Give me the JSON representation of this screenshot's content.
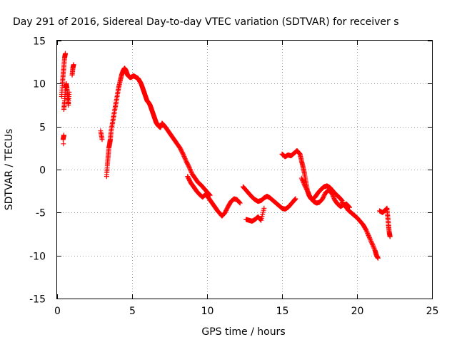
{
  "chart_data": {
    "type": "scatter",
    "title": "Day 291 of 2016, Sidereal Day-to-day VTEC variation (SDTVAR) for receiver s",
    "xlabel": "GPS time / hours",
    "ylabel": "SDTVAR / TECUs",
    "xlim": [
      0,
      25
    ],
    "ylim": [
      -15,
      15
    ],
    "x_ticks": [
      0,
      5,
      10,
      15,
      20,
      25
    ],
    "y_ticks": [
      -15,
      -10,
      -5,
      0,
      5,
      10,
      15
    ],
    "x_tick_labels": [
      "0",
      "5",
      "10",
      "15",
      "20",
      "25"
    ],
    "y_tick_labels": [
      "-15",
      "-10",
      "-5",
      "0",
      "5",
      "10",
      "15"
    ],
    "grid": true,
    "marker": "plus",
    "color": "#ff0000",
    "series": [
      {
        "values": [
          [
            0.3,
            8.5
          ],
          [
            0.35,
            10.0
          ],
          [
            0.4,
            11.0
          ],
          [
            0.45,
            12.0
          ],
          [
            0.5,
            13.0
          ],
          [
            0.55,
            13.5
          ],
          [
            0.45,
            7.0
          ],
          [
            0.5,
            8.0
          ],
          [
            0.55,
            9.5
          ],
          [
            0.6,
            10.0
          ],
          [
            0.65,
            9.5
          ],
          [
            0.7,
            8.5
          ],
          [
            0.75,
            7.5
          ],
          [
            0.8,
            9.0
          ],
          [
            0.4,
            3.5
          ],
          [
            0.45,
            4.0
          ],
          [
            0.42,
            3.0
          ],
          [
            1.0,
            11.0
          ],
          [
            1.05,
            11.8
          ],
          [
            1.1,
            12.2
          ],
          [
            2.9,
            4.5
          ],
          [
            3.0,
            3.5
          ],
          [
            3.3,
            -0.8
          ],
          [
            3.35,
            0.5
          ],
          [
            3.4,
            1.5
          ],
          [
            3.45,
            2.5
          ],
          [
            3.5,
            3.0
          ],
          [
            3.55,
            3.5
          ],
          [
            3.6,
            4.5
          ],
          [
            3.7,
            5.5
          ],
          [
            3.8,
            6.5
          ],
          [
            3.9,
            7.5
          ],
          [
            4.0,
            8.5
          ],
          [
            4.1,
            9.5
          ],
          [
            4.2,
            10.3
          ],
          [
            4.3,
            11.0
          ],
          [
            4.4,
            11.5
          ],
          [
            4.5,
            11.8
          ],
          [
            4.6,
            11.5
          ],
          [
            4.7,
            11.0
          ],
          [
            4.8,
            10.8
          ],
          [
            4.9,
            10.7
          ],
          [
            5.0,
            10.8
          ],
          [
            5.1,
            10.9
          ],
          [
            5.2,
            10.8
          ],
          [
            5.3,
            10.7
          ],
          [
            5.4,
            10.6
          ],
          [
            5.5,
            10.3
          ],
          [
            5.6,
            10.0
          ],
          [
            5.7,
            9.5
          ],
          [
            5.8,
            9.0
          ],
          [
            5.9,
            8.5
          ],
          [
            6.0,
            8.0
          ],
          [
            6.1,
            7.8
          ],
          [
            6.2,
            7.5
          ],
          [
            6.3,
            7.0
          ],
          [
            6.4,
            6.5
          ],
          [
            6.5,
            6.0
          ],
          [
            6.6,
            5.5
          ],
          [
            6.7,
            5.2
          ],
          [
            6.8,
            5.0
          ],
          [
            6.9,
            4.9
          ],
          [
            7.0,
            5.4
          ],
          [
            7.2,
            5.0
          ],
          [
            7.4,
            4.5
          ],
          [
            7.6,
            4.0
          ],
          [
            7.8,
            3.5
          ],
          [
            8.0,
            3.0
          ],
          [
            8.2,
            2.5
          ],
          [
            8.4,
            1.8
          ],
          [
            8.6,
            1.0
          ],
          [
            8.8,
            0.3
          ],
          [
            9.0,
            -0.5
          ],
          [
            9.2,
            -1.0
          ],
          [
            9.4,
            -1.5
          ],
          [
            9.6,
            -1.8
          ],
          [
            9.8,
            -2.2
          ],
          [
            10.0,
            -2.6
          ],
          [
            10.2,
            -3.0
          ],
          [
            8.7,
            -0.8
          ],
          [
            8.9,
            -1.5
          ],
          [
            9.1,
            -2.0
          ],
          [
            9.3,
            -2.5
          ],
          [
            9.5,
            -2.9
          ],
          [
            9.7,
            -3.2
          ],
          [
            9.9,
            -2.9
          ],
          [
            10.1,
            -3.3
          ],
          [
            10.3,
            -3.8
          ],
          [
            10.5,
            -4.3
          ],
          [
            10.7,
            -4.8
          ],
          [
            10.9,
            -5.2
          ],
          [
            11.0,
            -5.4
          ],
          [
            11.2,
            -5.0
          ],
          [
            11.4,
            -4.3
          ],
          [
            11.6,
            -3.7
          ],
          [
            11.8,
            -3.4
          ],
          [
            12.0,
            -3.5
          ],
          [
            12.2,
            -3.9
          ],
          [
            12.4,
            -2.0
          ],
          [
            12.6,
            -2.4
          ],
          [
            12.8,
            -2.8
          ],
          [
            13.0,
            -3.2
          ],
          [
            13.2,
            -3.5
          ],
          [
            13.4,
            -3.7
          ],
          [
            13.6,
            -3.6
          ],
          [
            13.8,
            -3.3
          ],
          [
            14.0,
            -3.1
          ],
          [
            14.2,
            -3.3
          ],
          [
            14.4,
            -3.6
          ],
          [
            14.6,
            -3.9
          ],
          [
            14.8,
            -4.2
          ],
          [
            15.0,
            -4.5
          ],
          [
            15.2,
            -4.6
          ],
          [
            15.4,
            -4.4
          ],
          [
            15.6,
            -4.0
          ],
          [
            15.8,
            -3.6
          ],
          [
            15.9,
            -3.4
          ],
          [
            12.6,
            -5.8
          ],
          [
            12.8,
            -5.9
          ],
          [
            13.0,
            -6.0
          ],
          [
            13.2,
            -5.8
          ],
          [
            13.4,
            -5.5
          ],
          [
            13.6,
            -5.9
          ],
          [
            13.8,
            -4.5
          ],
          [
            15.0,
            1.8
          ],
          [
            15.2,
            1.5
          ],
          [
            15.4,
            1.7
          ],
          [
            15.6,
            1.6
          ],
          [
            15.8,
            1.9
          ],
          [
            16.0,
            2.2
          ],
          [
            16.2,
            1.8
          ],
          [
            16.3,
            1.0
          ],
          [
            16.4,
            0.3
          ],
          [
            16.5,
            -0.5
          ],
          [
            16.6,
            -1.5
          ],
          [
            16.7,
            -2.5
          ],
          [
            16.8,
            -3.0
          ],
          [
            16.9,
            -3.3
          ],
          [
            17.0,
            -3.5
          ],
          [
            17.2,
            -3.2
          ],
          [
            17.4,
            -2.7
          ],
          [
            17.6,
            -2.3
          ],
          [
            17.8,
            -2.0
          ],
          [
            18.0,
            -1.9
          ],
          [
            18.2,
            -2.1
          ],
          [
            18.4,
            -2.5
          ],
          [
            18.6,
            -2.9
          ],
          [
            18.8,
            -3.2
          ],
          [
            19.0,
            -3.6
          ],
          [
            16.3,
            -1.0
          ],
          [
            16.5,
            -1.8
          ],
          [
            16.7,
            -2.5
          ],
          [
            16.9,
            -3.3
          ],
          [
            17.1,
            -3.7
          ],
          [
            17.3,
            -3.9
          ],
          [
            17.5,
            -3.8
          ],
          [
            17.7,
            -3.4
          ],
          [
            17.9,
            -2.7
          ],
          [
            18.1,
            -2.4
          ],
          [
            18.3,
            -2.7
          ],
          [
            18.5,
            -3.5
          ],
          [
            18.7,
            -4.0
          ],
          [
            18.9,
            -4.3
          ],
          [
            19.1,
            -4.1
          ],
          [
            19.3,
            -4.0
          ],
          [
            19.5,
            -4.4
          ],
          [
            19.0,
            -3.8
          ],
          [
            19.2,
            -4.2
          ],
          [
            19.4,
            -4.7
          ],
          [
            19.6,
            -5.0
          ],
          [
            19.8,
            -5.3
          ],
          [
            20.0,
            -5.6
          ],
          [
            20.2,
            -6.0
          ],
          [
            20.4,
            -6.4
          ],
          [
            20.6,
            -7.0
          ],
          [
            20.8,
            -7.8
          ],
          [
            21.0,
            -8.6
          ],
          [
            21.2,
            -9.4
          ],
          [
            21.3,
            -10.0
          ],
          [
            21.4,
            -10.3
          ],
          [
            21.5,
            -4.8
          ],
          [
            21.7,
            -5.0
          ],
          [
            21.9,
            -4.7
          ],
          [
            22.0,
            -4.5
          ],
          [
            22.05,
            -5.5
          ],
          [
            22.1,
            -6.5
          ],
          [
            22.15,
            -7.3
          ],
          [
            22.2,
            -7.8
          ]
        ]
      }
    ]
  }
}
